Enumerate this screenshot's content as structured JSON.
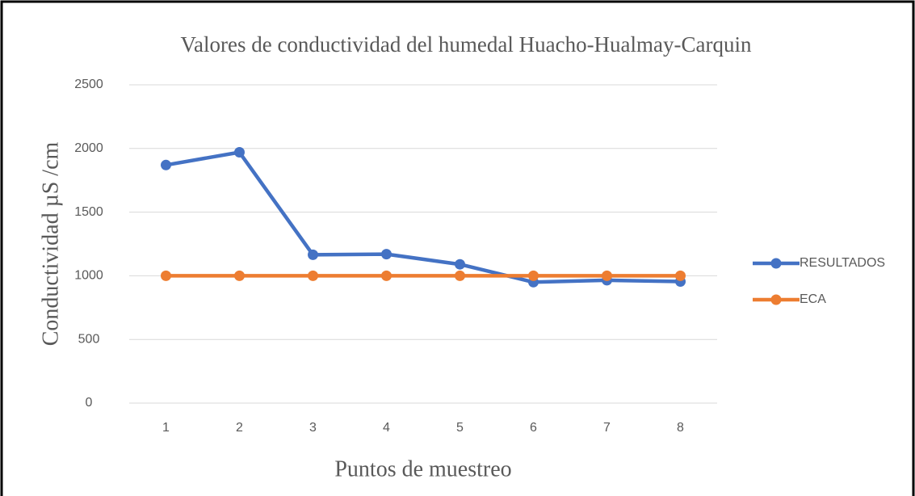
{
  "chart_data": {
    "type": "line",
    "title": "Valores de conductividad del humedal Huacho-Hualmay-Carquin",
    "x_label": "Puntos de muestreo",
    "y_label": "Conductividad µS /cm",
    "categories": [
      "1",
      "2",
      "3",
      "4",
      "5",
      "6",
      "7",
      "8"
    ],
    "series": [
      {
        "name": "RESULTADOS",
        "color": "#4472c4",
        "values": [
          1870,
          1970,
          1165,
          1170,
          1090,
          950,
          965,
          955
        ]
      },
      {
        "name": "ECA",
        "color": "#ed7d31",
        "values": [
          1000,
          1000,
          1000,
          1000,
          1000,
          1000,
          1000,
          1000
        ]
      }
    ],
    "ylim": [
      0,
      2500
    ],
    "yticks": [
      0,
      500,
      1000,
      1500,
      2000,
      2500
    ],
    "grid": true,
    "legend": "right"
  }
}
